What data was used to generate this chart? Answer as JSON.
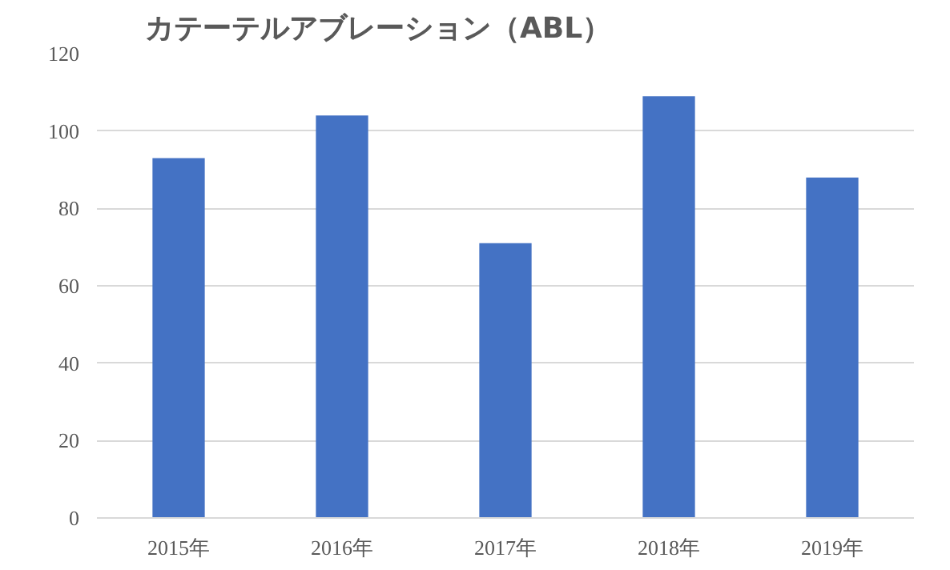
{
  "chart_data": {
    "type": "bar",
    "title": "カテーテルアブレーション（ABL）",
    "categories": [
      "2015年",
      "2016年",
      "2017年",
      "2018年",
      "2019年"
    ],
    "values": [
      93,
      104,
      71,
      109,
      88
    ],
    "color": "#4472c4",
    "ylim": [
      0,
      120
    ],
    "yticks": [
      0,
      20,
      40,
      60,
      80,
      100,
      120
    ],
    "grid": "y"
  }
}
